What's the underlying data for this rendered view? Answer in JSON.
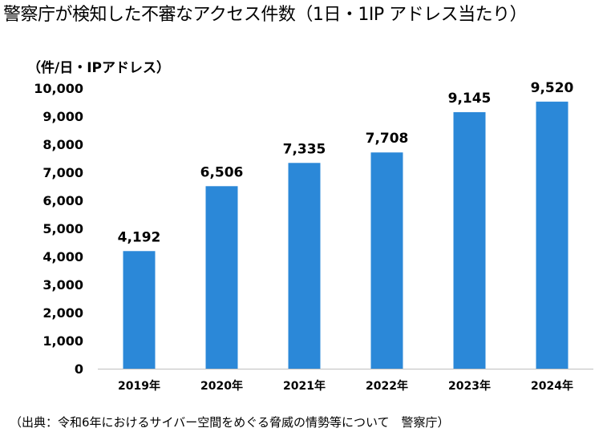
{
  "title": "警察庁が検知した不審なアクセス件数（1日・1IP アドレス当たり）",
  "source": "（出典：令和6年におけるサイバー空間をめぐる脅威の情勢等について　警察庁）",
  "colors": {
    "bar": "#2b88d8",
    "axis": "#bfbfbf",
    "text": "#000000"
  },
  "chart_data": {
    "type": "bar",
    "title": "警察庁が検知した不審なアクセス件数（1日・1IP アドレス当たり）",
    "ylabel": "（件/日・IPアドレス）",
    "xlabel": "",
    "categories": [
      "2019年",
      "2020年",
      "2021年",
      "2022年",
      "2023年",
      "2024年"
    ],
    "values": [
      4192,
      6506,
      7335,
      7708,
      9145,
      9520
    ],
    "data_labels": [
      "4,192",
      "6,506",
      "7,335",
      "7,708",
      "9,145",
      "9,520"
    ],
    "ylim": [
      0,
      10000
    ],
    "yticks": [
      0,
      1000,
      2000,
      3000,
      4000,
      5000,
      6000,
      7000,
      8000,
      9000,
      10000
    ],
    "ytick_labels": [
      "0",
      "1,000",
      "2,000",
      "3,000",
      "4,000",
      "5,000",
      "6,000",
      "7,000",
      "8,000",
      "9,000",
      "10,000"
    ],
    "grid": false,
    "legend": "none"
  }
}
